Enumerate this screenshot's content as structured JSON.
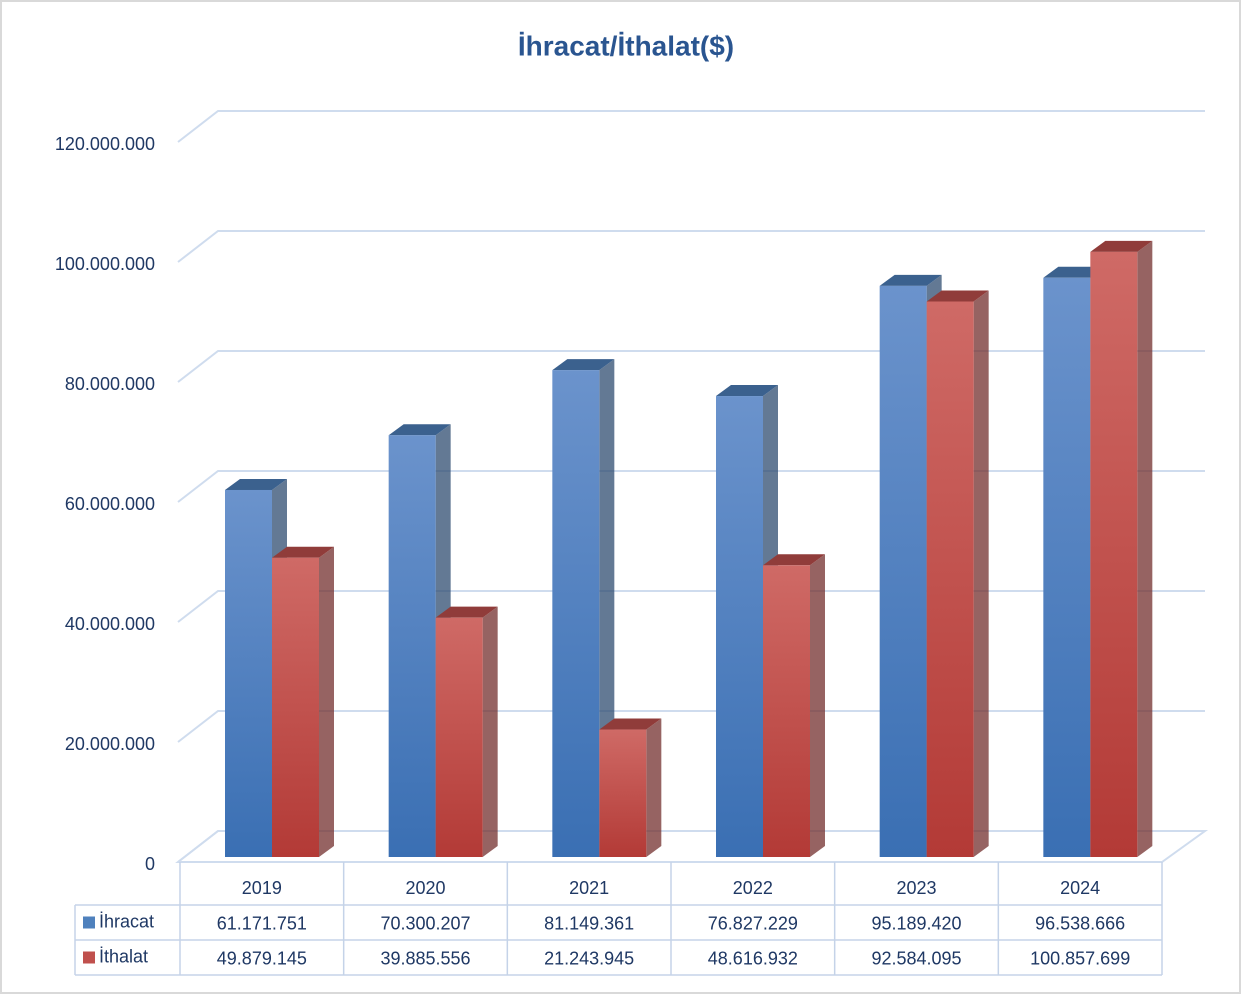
{
  "chart_data": {
    "type": "bar3d",
    "title": "İhracat/İthalat($)",
    "categories": [
      "2019",
      "2020",
      "2021",
      "2022",
      "2023",
      "2024"
    ],
    "series": [
      {
        "name": "İhracat",
        "color": "#4f81bd",
        "values": [
          61171751,
          70300207,
          81149361,
          76827229,
          95189420,
          96538666
        ],
        "value_labels": [
          "61.171.751",
          "70.300.207",
          "81.149.361",
          "76.827.229",
          "95.189.420",
          "96.538.666"
        ]
      },
      {
        "name": "İthalat",
        "color": "#c0504d",
        "values": [
          49879145,
          39885556,
          21243945,
          48616932,
          92584095,
          100857699
        ],
        "value_labels": [
          "49.879.145",
          "39.885.556",
          "21.243.945",
          "48.616.932",
          "92.584.095",
          "100.857.699"
        ]
      }
    ],
    "ylim": [
      0,
      120000000
    ],
    "yticks": [
      0,
      {
        "value": 20000000,
        "label": "20.000.000"
      },
      {
        "value": 40000000,
        "label": "40.000.000"
      },
      {
        "value": 60000000,
        "label": "60.000.000"
      },
      {
        "value": 80000000,
        "label": "80.000.000"
      },
      {
        "value": 100000000,
        "label": "100.000.000"
      },
      {
        "value": 120000000,
        "label": "120.000.000"
      }
    ],
    "grid": true,
    "data_table": true
  }
}
